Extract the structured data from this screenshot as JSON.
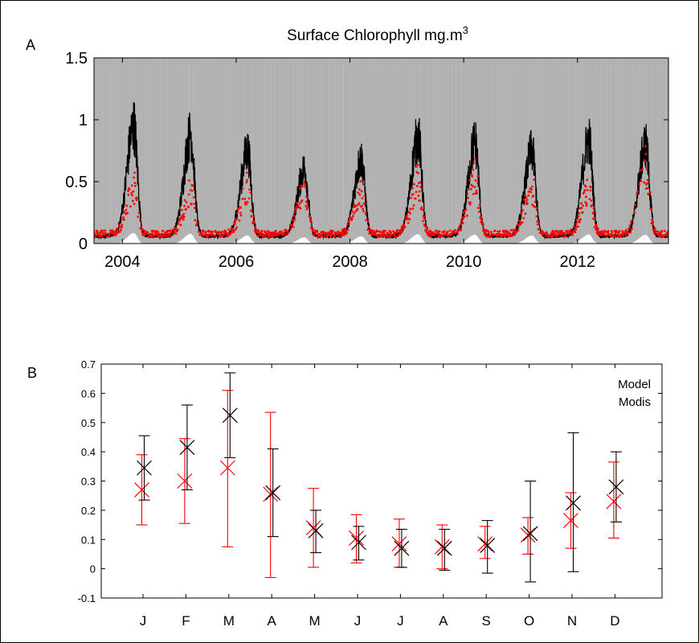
{
  "chart_data": [
    {
      "panel_label": "A",
      "type": "line",
      "title": "Surface Chlorophyll mg.m",
      "title_superscript": "3",
      "xlim": [
        2003.5,
        2013.6
      ],
      "ylim": [
        0,
        1.5
      ],
      "ytick_labels": [
        "0",
        "0.5",
        "1",
        "1.5"
      ],
      "ytick_values": [
        0,
        0.5,
        1,
        1.5
      ],
      "xtick_labels": [
        "2004",
        "2006",
        "2008",
        "2010",
        "2012"
      ],
      "xtick_values": [
        2004,
        2006,
        2008,
        2010,
        2012
      ],
      "series_colors": {
        "model": "#000000",
        "modis": "#ff0000",
        "error": "#b0b0b0"
      },
      "seasonal_peaks": [
        {
          "x": 2004.2,
          "model": 0.95,
          "modis": 0.45,
          "err_high": 1.33
        },
        {
          "x": 2005.2,
          "model": 0.88,
          "modis": 0.42,
          "err_high": 1.35
        },
        {
          "x": 2006.2,
          "model": 0.75,
          "modis": 0.45,
          "err_high": 1.15
        },
        {
          "x": 2007.2,
          "model": 0.6,
          "modis": 0.45,
          "err_high": 0.87
        },
        {
          "x": 2008.2,
          "model": 0.68,
          "modis": 0.42,
          "err_high": 1.07
        },
        {
          "x": 2009.2,
          "model": 0.86,
          "modis": 0.5,
          "err_high": 1.22
        },
        {
          "x": 2010.2,
          "model": 0.82,
          "modis": 0.55,
          "err_high": 1.5
        },
        {
          "x": 2011.2,
          "model": 0.75,
          "modis": 0.45,
          "err_high": 1.07
        },
        {
          "x": 2012.2,
          "model": 0.84,
          "modis": 0.42,
          "err_high": 1.35
        },
        {
          "x": 2013.2,
          "model": 0.8,
          "modis": 0.62,
          "err_high": 1.24
        }
      ],
      "baseline": {
        "model": 0.06,
        "modis": 0.08
      }
    },
    {
      "panel_label": "B",
      "type": "scatter",
      "categories": [
        "J",
        "F",
        "M",
        "A",
        "M",
        "J",
        "J",
        "A",
        "S",
        "O",
        "N",
        "D"
      ],
      "ylim": [
        -0.1,
        0.7
      ],
      "ytick_labels": [
        "-0.1",
        "0",
        "0.1",
        "0.2",
        "0.3",
        "0.4",
        "0.5",
        "0.6",
        "0.7"
      ],
      "ytick_values": [
        -0.1,
        0,
        0.1,
        0.2,
        0.3,
        0.4,
        0.5,
        0.6,
        0.7
      ],
      "legend_placement": "top-right",
      "series": [
        {
          "name": "Model",
          "color": "#000000",
          "values": [
            0.345,
            0.415,
            0.525,
            0.26,
            0.13,
            0.09,
            0.07,
            0.07,
            0.08,
            0.12,
            0.225,
            0.28
          ],
          "err_low": [
            0.235,
            0.27,
            0.38,
            0.11,
            0.055,
            0.03,
            0.005,
            -0.005,
            -0.015,
            -0.045,
            -0.01,
            0.16
          ],
          "err_high": [
            0.455,
            0.56,
            0.67,
            0.41,
            0.2,
            0.145,
            0.135,
            0.135,
            0.165,
            0.3,
            0.465,
            0.4
          ]
        },
        {
          "name": "Modis",
          "color": "#ff0000",
          "values": [
            0.27,
            0.3,
            0.345,
            0.255,
            0.14,
            0.105,
            0.085,
            0.075,
            0.085,
            0.115,
            0.165,
            0.23
          ],
          "err_low": [
            0.15,
            0.155,
            0.075,
            -0.03,
            0.005,
            0.02,
            0.005,
            0.0,
            0.035,
            0.05,
            0.07,
            0.105
          ],
          "err_high": [
            0.39,
            0.445,
            0.61,
            0.535,
            0.275,
            0.185,
            0.17,
            0.15,
            0.145,
            0.175,
            0.26,
            0.365
          ]
        }
      ]
    }
  ]
}
